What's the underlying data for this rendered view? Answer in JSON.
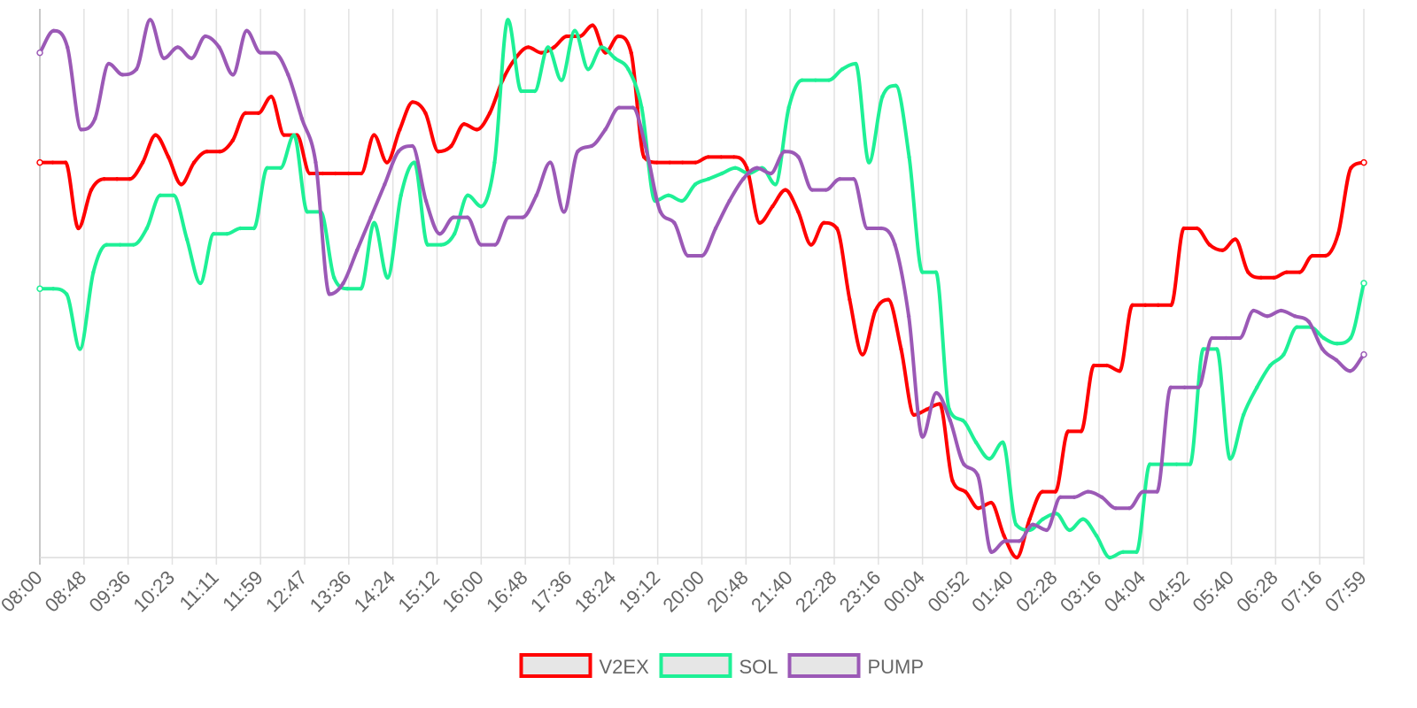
{
  "chart_data": {
    "type": "line",
    "title": "",
    "xlabel": "",
    "ylabel": "",
    "grid": {
      "vertical": true,
      "horizontal": false
    },
    "legend_placement": "bottom-center",
    "y_axis_visible": false,
    "ylim": [
      0,
      100
    ],
    "x_ticks": [
      "08:00",
      "08:48",
      "09:36",
      "10:23",
      "11:11",
      "11:59",
      "12:47",
      "13:36",
      "14:24",
      "15:12",
      "16:00",
      "16:48",
      "17:36",
      "18:24",
      "19:12",
      "20:00",
      "20:48",
      "21:40",
      "22:28",
      "23:16",
      "00:04",
      "00:52",
      "01:40",
      "02:28",
      "03:16",
      "04:04",
      "04:52",
      "05:40",
      "06:28",
      "07:16",
      "07:59"
    ],
    "series": [
      {
        "name": "V2EX",
        "color": "#ff0000",
        "values": [
          72,
          72,
          72,
          60,
          67,
          69,
          69,
          69,
          72,
          77,
          73,
          68,
          72,
          74,
          74,
          76,
          81,
          81,
          84,
          77,
          77,
          70,
          70,
          70,
          70,
          70,
          77,
          72,
          78,
          83,
          81,
          74,
          75,
          79,
          78,
          81,
          87,
          91,
          93,
          92,
          93,
          95,
          95,
          97,
          92,
          95,
          92,
          73,
          72,
          72,
          72,
          72,
          73,
          73,
          73,
          71,
          61,
          64,
          67,
          63,
          57,
          61,
          60,
          47,
          37,
          45,
          47,
          38,
          26,
          27,
          28,
          14,
          12,
          9,
          10,
          4,
          0,
          7,
          12,
          12,
          23,
          23,
          35,
          35,
          34,
          46,
          46,
          46,
          46,
          60,
          60,
          57,
          56,
          58,
          52,
          51,
          51,
          52,
          52,
          55,
          55,
          59,
          71,
          72
        ]
      },
      {
        "name": "SOL",
        "color": "#1ef096",
        "values": [
          49,
          49,
          48,
          38,
          52,
          57,
          57,
          57,
          60,
          66,
          66,
          58,
          50,
          59,
          59,
          60,
          60,
          71,
          71,
          77,
          63,
          63,
          51,
          49,
          49,
          61,
          51,
          66,
          72,
          57,
          57,
          59,
          66,
          64,
          72,
          98,
          85,
          85,
          93,
          87,
          96,
          89,
          93,
          91,
          89,
          82,
          65,
          66,
          65,
          68,
          69,
          70,
          71,
          70,
          71,
          68,
          82,
          87,
          87,
          87,
          89,
          90,
          72,
          84,
          86,
          73,
          52,
          52,
          27,
          25,
          21,
          18,
          21,
          6,
          5,
          7,
          8,
          5,
          7,
          4,
          0,
          1,
          1,
          17,
          17,
          17,
          17,
          38,
          38,
          18,
          26,
          31,
          35,
          37,
          42,
          42,
          40,
          39,
          40,
          50
        ]
      },
      {
        "name": "PUMP",
        "color": "#9b59b6",
        "values": [
          92,
          96,
          93,
          78,
          80,
          90,
          88,
          89,
          98,
          91,
          93,
          91,
          95,
          93,
          88,
          96,
          92,
          92,
          88,
          80,
          72,
          48,
          50,
          56,
          62,
          68,
          74,
          75,
          65,
          59,
          62,
          62,
          57,
          57,
          62,
          62,
          66,
          72,
          63,
          74,
          75,
          78,
          82,
          82,
          74,
          63,
          61,
          55,
          55,
          60,
          65,
          69,
          71,
          70,
          74,
          73,
          67,
          67,
          69,
          69,
          60,
          60,
          57,
          44,
          22,
          30,
          25,
          17,
          15,
          1,
          3,
          3,
          6,
          5,
          11,
          11,
          12,
          11,
          9,
          9,
          12,
          12,
          31,
          31,
          31,
          40,
          40,
          40,
          45,
          44,
          45,
          44,
          43,
          38,
          36,
          34,
          37
        ]
      }
    ]
  }
}
